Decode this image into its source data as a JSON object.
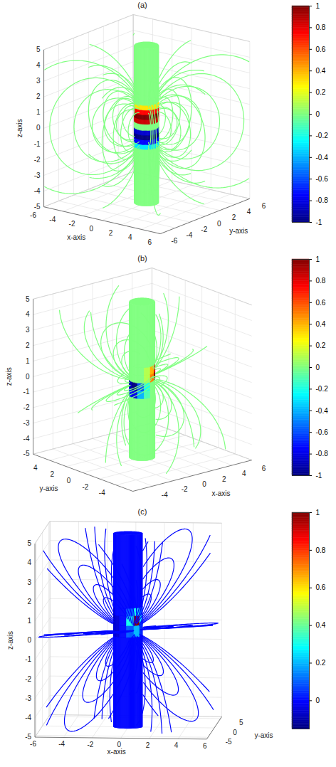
{
  "chart_data": [
    {
      "type": "surface3d",
      "title": "(a)",
      "xlabel": "x-axis",
      "ylabel": "y-axis",
      "zlabel": "z-axis",
      "xlim": [
        -6,
        6
      ],
      "ylim": [
        -6,
        6
      ],
      "zlim": [
        -5,
        5
      ],
      "xticks": [
        -6,
        -4,
        -2,
        0,
        2,
        4,
        6
      ],
      "yticks": [
        -6,
        -4,
        -2,
        0,
        2,
        4,
        6
      ],
      "zticks": [
        -5,
        -4,
        -3,
        -2,
        -1,
        0,
        1,
        2,
        3,
        4,
        5
      ],
      "grid": true,
      "colorbar": {
        "lim": [
          -1,
          1
        ],
        "ticks": [
          -1,
          -0.8,
          -0.6,
          -0.4,
          -0.2,
          0,
          0.2,
          0.4,
          0.6,
          0.8,
          1
        ]
      },
      "cylinder": {
        "radius": 1,
        "z_bins": [
          -5,
          -1.4,
          -1.1,
          -0.8,
          -0.5,
          -0.2,
          0.2,
          0.5,
          0.8,
          1.1,
          1.4,
          5
        ],
        "angle_bins": [
          0,
          360
        ],
        "values": [
          [
            0
          ],
          [
            -0.3
          ],
          [
            -0.75
          ],
          [
            -1
          ],
          [
            -0.85
          ],
          [
            0
          ],
          [
            0.85
          ],
          [
            1
          ],
          [
            0.75
          ],
          [
            0.3
          ],
          [
            0
          ]
        ]
      },
      "field_lines": {
        "value": 0,
        "axis_azimuth": 0,
        "axis_elevation": 90,
        "loop_sizes": [
          2.5,
          3.5,
          4.5,
          6,
          8,
          11
        ],
        "loop_angles": [
          0,
          45,
          90,
          135,
          180,
          225,
          270,
          315
        ]
      }
    },
    {
      "type": "surface3d",
      "title": "(b)",
      "xlabel": "x-axis",
      "ylabel": "y-axis",
      "zlabel": "z-axis",
      "xlim": [
        -6,
        6
      ],
      "ylim": [
        -6,
        6
      ],
      "zlim": [
        -5,
        5
      ],
      "xticks": [
        -4,
        -2,
        0,
        2,
        4,
        6
      ],
      "yticks": [
        -4,
        -2,
        0,
        2,
        4
      ],
      "zticks": [
        -5,
        -4,
        -3,
        -2,
        -1,
        0,
        1,
        2,
        3,
        4,
        5
      ],
      "grid": true,
      "colorbar": {
        "lim": [
          -1,
          1
        ],
        "ticks": [
          -1,
          -0.8,
          -0.6,
          -0.4,
          -0.2,
          0,
          0.2,
          0.4,
          0.6,
          0.8,
          1
        ]
      },
      "cylinder": {
        "radius": 1,
        "z_bins": [
          -5,
          -1,
          -0.5,
          0,
          0.5,
          1,
          5
        ],
        "angle_bins": [
          0,
          30,
          60,
          90,
          120,
          150,
          180,
          210,
          240,
          270,
          300,
          330,
          360
        ],
        "values": [
          [
            0,
            0,
            0,
            0,
            0,
            0,
            0,
            0,
            0,
            0,
            0,
            0
          ],
          [
            0,
            0,
            0,
            -0.1,
            -0.5,
            -0.7,
            -0.8,
            -0.4,
            -0.1,
            0,
            0,
            0
          ],
          [
            0,
            0,
            0,
            -0.2,
            -0.7,
            -0.9,
            -1,
            -0.6,
            -0.2,
            0,
            0,
            0
          ],
          [
            0.4,
            0,
            0,
            0,
            0,
            0,
            0,
            0,
            0.1,
            0.5,
            1,
            0.8
          ],
          [
            0.2,
            0,
            0,
            0,
            0,
            0,
            0,
            0,
            0.1,
            0.4,
            0.8,
            0.6
          ],
          [
            0,
            0,
            0,
            0,
            0,
            0,
            0,
            0,
            0,
            0,
            0,
            0
          ]
        ]
      },
      "field_lines": {
        "value": 0,
        "axis_azimuth": 300,
        "axis_elevation": 20,
        "loop_sizes": [
          2.5,
          3.5,
          5,
          7,
          10
        ],
        "loop_angles": [
          0,
          60,
          120,
          180,
          240,
          300
        ]
      }
    },
    {
      "type": "surface3d",
      "title": "(c)",
      "xlabel": "x-axis",
      "ylabel": "y-axis",
      "zlabel": "z-axis",
      "xlim": [
        -6,
        6
      ],
      "ylim": [
        -6,
        6
      ],
      "zlim": [
        -5,
        5
      ],
      "xticks": [
        -6,
        -4,
        -2,
        0,
        2,
        4,
        6
      ],
      "yticks": [
        -5,
        0,
        5
      ],
      "zticks": [
        -5,
        -4,
        -3,
        -2,
        -1,
        0,
        1,
        2,
        3,
        4,
        5
      ],
      "grid": true,
      "colorbar": {
        "lim": [
          -0.15,
          1
        ],
        "ticks": [
          0,
          0.2,
          0.4,
          0.6,
          0.8,
          1
        ]
      },
      "cylinder": {
        "radius": 1,
        "z_bins": [
          -5,
          -0.3,
          0.3,
          0.8,
          1.2,
          5
        ],
        "angle_bins": [
          0,
          30,
          60,
          90,
          120,
          150,
          180,
          210,
          240,
          270,
          300,
          330,
          360
        ],
        "values": [
          [
            0,
            0,
            0,
            0,
            0,
            0,
            0,
            0,
            0,
            0,
            0,
            0
          ],
          [
            0,
            0,
            0,
            0,
            0,
            0,
            -0.05,
            -0.05,
            0,
            0.1,
            0.2,
            0.05
          ],
          [
            0,
            0,
            0,
            0,
            0,
            0,
            -0.08,
            -0.05,
            0,
            0.3,
            1,
            0.3
          ],
          [
            0,
            0,
            0,
            0,
            0,
            0,
            -0.05,
            0,
            0,
            0.1,
            0.3,
            0.1
          ],
          [
            0,
            0,
            0,
            0,
            0,
            0,
            0,
            0,
            0,
            0,
            0,
            0
          ]
        ]
      },
      "field_lines": {
        "value": 0,
        "axis_azimuth": 308,
        "axis_elevation": 5,
        "loop_sizes": [
          2.5,
          3.5,
          5,
          7,
          10,
          14
        ],
        "loop_angles": [
          0,
          45,
          90,
          135,
          180,
          225,
          270,
          315
        ]
      }
    }
  ]
}
